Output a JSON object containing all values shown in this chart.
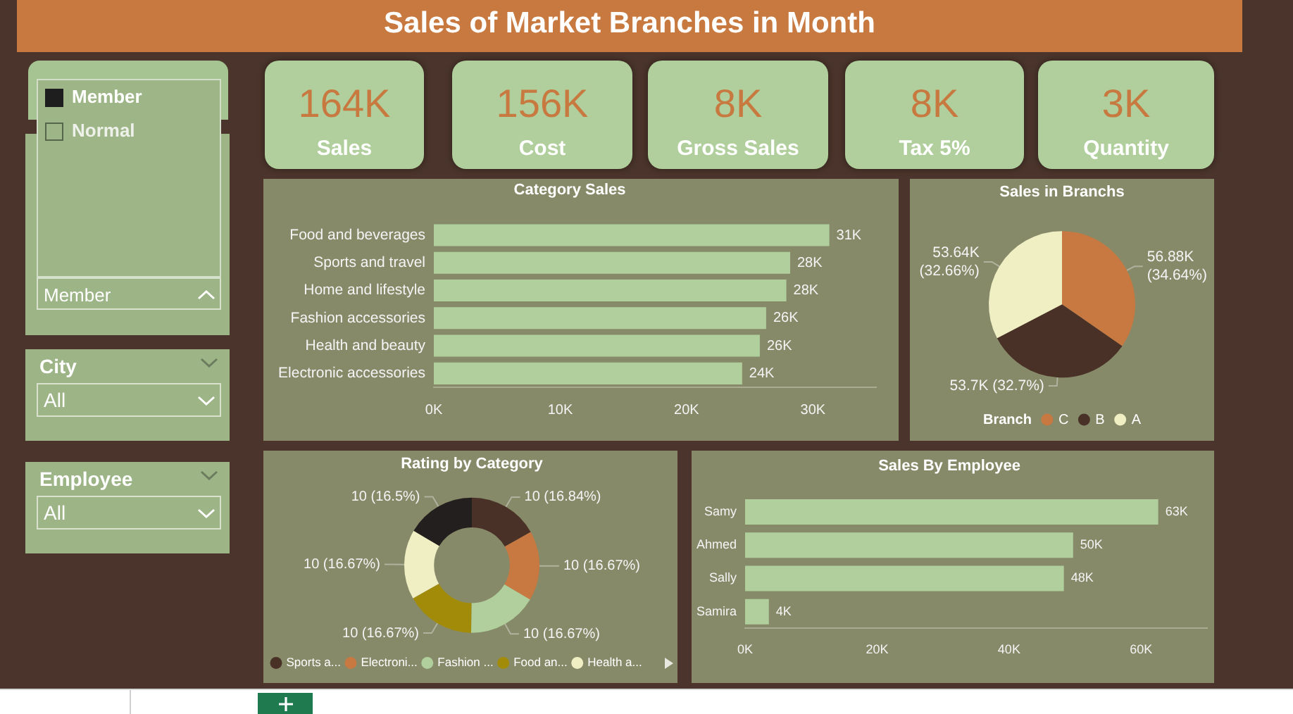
{
  "chart_data": [
    {
      "type": "other",
      "title": "Sales of Market Branches in Month",
      "annotations": [
        "164K",
        "Sales",
        "156K",
        "Cost",
        "8K",
        "Gross Sales",
        "8K",
        "Tax 5%",
        "3K",
        "Quantity"
      ]
    },
    {
      "type": "other",
      "annotations": [
        "Member",
        "Normal",
        "Member",
        "City",
        "All",
        "Employee",
        "All"
      ]
    },
    {
      "type": "bar",
      "orientation": "horizontal",
      "title": "Category Sales",
      "categories": [
        "Food and beverages",
        "Sports and travel",
        "Home and lifestyle",
        "Fashion accessories",
        "Health and beauty",
        "Electronic accessories"
      ],
      "values": [
        31300,
        28200,
        27900,
        26300,
        25800,
        24400
      ],
      "color": "#b0cf9c",
      "xlim": [
        0,
        35000
      ],
      "xticks": [
        {
          "value": 0,
          "label": "0K"
        },
        {
          "value": 10000,
          "label": "10K"
        },
        {
          "value": 20000,
          "label": "20K"
        },
        {
          "value": 30000,
          "label": "30K"
        }
      ],
      "value_labels": [
        "31K",
        "28K",
        "28K",
        "26K",
        "26K",
        "24K"
      ]
    },
    {
      "type": "pie",
      "title": "Sales in Branchs",
      "categories": [
        "C",
        "B",
        "A"
      ],
      "values": [
        56880,
        53700,
        53640
      ],
      "colors": [
        "#c87941",
        "#4a3128",
        "#f0efc4"
      ],
      "value_labels": [
        "56.88K (34.64%)",
        "53.7K (32.7%)",
        "53.64K (32.66%)"
      ],
      "legend": "bottom",
      "legend_title": "Branch"
    },
    {
      "type": "donut",
      "title": "Rating by Category",
      "categories": [
        "Sports a...",
        "Electroni...",
        "Fashion ...",
        "Food an...",
        "Health a...",
        null
      ],
      "values": [
        10.1,
        10,
        10,
        10,
        10,
        9.9
      ],
      "colors": [
        "#4a3128",
        "#c87941",
        "#b0cf9c",
        "#a38b0a",
        "#f0efc4",
        "#231f1e"
      ],
      "value_labels": [
        "10 (16.84%)",
        "10 (16.67%)",
        "10 (16.67%)",
        "10 (16.67%)",
        "10 (16.67%)",
        "10 (16.5%)"
      ],
      "legend": "bottom"
    },
    {
      "type": "bar",
      "orientation": "horizontal",
      "title": "Sales By Employee",
      "categories": [
        "Samy",
        "Ahmed",
        "Sally",
        "Samira"
      ],
      "values": [
        62600,
        49700,
        48300,
        3600
      ],
      "color": "#b0cf9c",
      "xlim": [
        0,
        70000
      ],
      "xticks": [
        {
          "value": 0,
          "label": "0K"
        },
        {
          "value": 20000,
          "label": "20K"
        },
        {
          "value": 40000,
          "label": "40K"
        },
        {
          "value": 60000,
          "label": "60K"
        }
      ],
      "value_labels": [
        "63K",
        "50K",
        "48K",
        "4K"
      ]
    }
  ]
}
